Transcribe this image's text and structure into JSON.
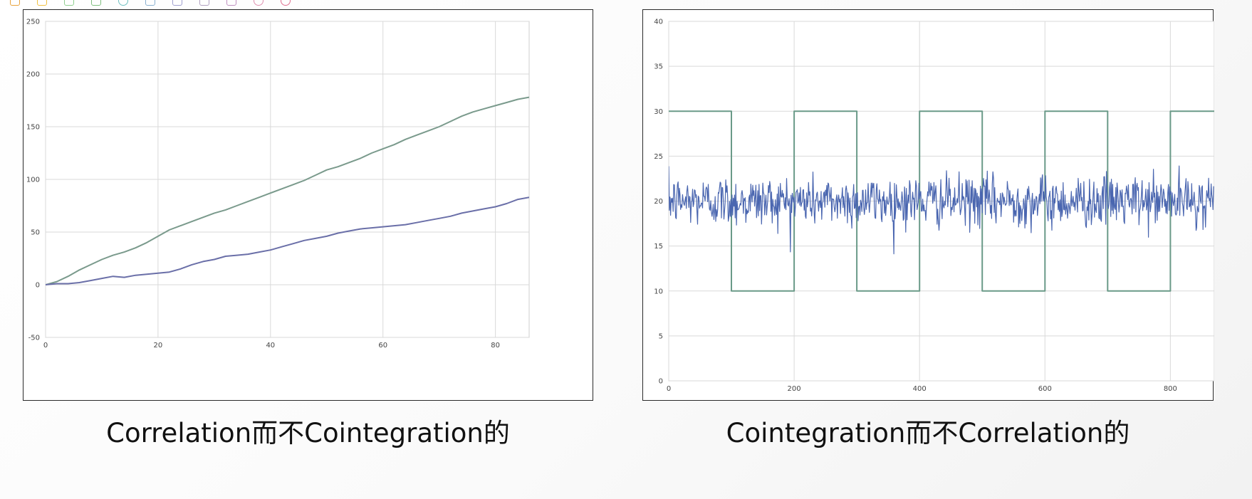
{
  "toolbar": {
    "icons": [
      {
        "name": "folder-icon",
        "color": "#e8a33d"
      },
      {
        "name": "pen-icon",
        "color": "#f0c040"
      },
      {
        "name": "rect-icon",
        "color": "#8fcf8f"
      },
      {
        "name": "rect-icon",
        "color": "#7fbf7f"
      },
      {
        "name": "circle-icon",
        "color": "#6fc0c0"
      },
      {
        "name": "arrow-icon",
        "color": "#8ab0d0"
      },
      {
        "name": "arrow-icon",
        "color": "#a0a0d0"
      },
      {
        "name": "arrow-icon",
        "color": "#b0a0c0"
      },
      {
        "name": "shape-icon",
        "color": "#c090c0"
      },
      {
        "name": "circle-icon",
        "color": "#e090b0"
      },
      {
        "name": "circle-icon",
        "color": "#e07090"
      }
    ]
  },
  "captions": {
    "left": "Correlation而不Cointegration的",
    "right": "Cointegration而不Correlation的"
  },
  "chart_data": [
    {
      "type": "line",
      "title": "",
      "xlabel": "",
      "ylabel": "",
      "xlim": [
        0,
        86
      ],
      "ylim": [
        -50,
        250
      ],
      "xticks": [
        0,
        20,
        40,
        60,
        80
      ],
      "yticks": [
        -50,
        0,
        50,
        100,
        150,
        200,
        250
      ],
      "grid": true,
      "series": [
        {
          "color": "#7a9a8c",
          "x": [
            0,
            2,
            4,
            6,
            8,
            10,
            12,
            14,
            16,
            18,
            20,
            22,
            24,
            26,
            28,
            30,
            32,
            34,
            36,
            38,
            40,
            42,
            44,
            46,
            48,
            50,
            52,
            54,
            56,
            58,
            60,
            62,
            64,
            66,
            68,
            70,
            72,
            74,
            76,
            78,
            80,
            82,
            84,
            86
          ],
          "values": [
            0,
            3,
            8,
            14,
            19,
            24,
            28,
            31,
            35,
            40,
            46,
            52,
            56,
            60,
            64,
            68,
            71,
            75,
            79,
            83,
            87,
            91,
            95,
            99,
            104,
            109,
            112,
            116,
            120,
            125,
            129,
            133,
            138,
            142,
            146,
            150,
            155,
            160,
            164,
            167,
            170,
            173,
            176,
            178
          ]
        },
        {
          "color": "#6a6fa8",
          "x": [
            0,
            2,
            4,
            6,
            8,
            10,
            12,
            14,
            16,
            18,
            20,
            22,
            24,
            26,
            28,
            30,
            32,
            34,
            36,
            38,
            40,
            42,
            44,
            46,
            48,
            50,
            52,
            54,
            56,
            58,
            60,
            62,
            64,
            66,
            68,
            70,
            72,
            74,
            76,
            78,
            80,
            82,
            84,
            86
          ],
          "values": [
            0,
            1,
            1,
            2,
            4,
            6,
            8,
            7,
            9,
            10,
            11,
            12,
            15,
            19,
            22,
            24,
            27,
            28,
            29,
            31,
            33,
            36,
            39,
            42,
            44,
            46,
            49,
            51,
            53,
            54,
            55,
            56,
            57,
            59,
            61,
            63,
            65,
            68,
            70,
            72,
            74,
            77,
            81,
            83
          ]
        }
      ]
    },
    {
      "type": "line",
      "title": "",
      "xlabel": "",
      "ylabel": "",
      "xlim": [
        0,
        870
      ],
      "ylim": [
        0,
        40
      ],
      "xticks": [
        0,
        200,
        400,
        600,
        800
      ],
      "yticks": [
        0,
        5,
        10,
        15,
        20,
        25,
        30,
        35,
        40
      ],
      "grid": true,
      "series": [
        {
          "color": "#6a9a88",
          "kind": "square",
          "low": 10,
          "high": 30,
          "period": 200,
          "start_high": true
        },
        {
          "color": "#4a66b0",
          "kind": "noise",
          "mean": 20,
          "sd": 1.4,
          "n": 870
        }
      ]
    }
  ]
}
